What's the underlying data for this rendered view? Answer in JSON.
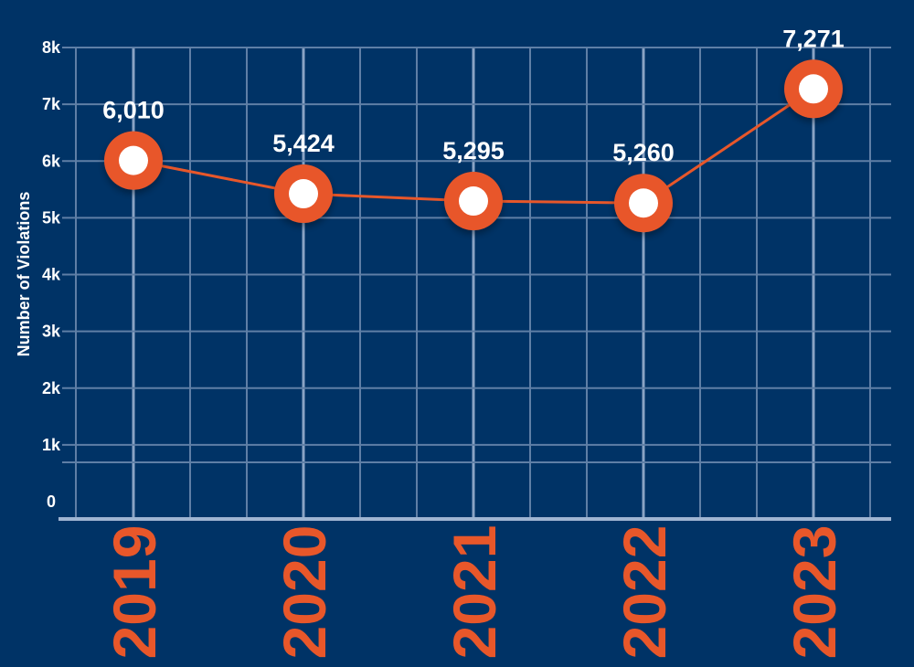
{
  "chart_data": {
    "type": "line",
    "title": "",
    "xlabel": "",
    "ylabel": "Number of Violations",
    "categories": [
      "2019",
      "2020",
      "2021",
      "2022",
      "2023"
    ],
    "series": [
      {
        "values": [
          6010,
          5424,
          5295,
          5260,
          7271
        ]
      }
    ],
    "data_labels": [
      "6,010",
      "5,424",
      "5,295",
      "5,260",
      "7,271"
    ],
    "ylim": [
      0,
      8000
    ],
    "yticks": [
      "0",
      "1k",
      "2k",
      "3k",
      "4k",
      "5k",
      "6k",
      "7k",
      "8k"
    ],
    "grid": true,
    "colors": {
      "background": "#003366",
      "grid": "#5f7fa6",
      "line": "#e8572a",
      "marker_outer": "#e8572a",
      "marker_inner": "#ffffff",
      "x_tick_text": "#e8572a",
      "text": "#ffffff"
    }
  }
}
